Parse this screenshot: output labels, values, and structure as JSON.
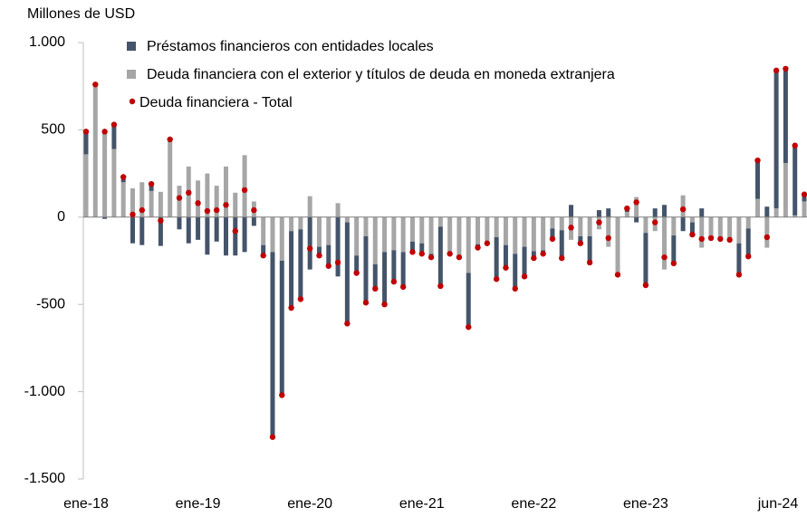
{
  "chart_data": {
    "type": "bar",
    "y_axis_label": "Millones de USD",
    "categories": [
      "ene-18",
      null,
      null,
      null,
      null,
      null,
      null,
      null,
      null,
      null,
      null,
      null,
      "ene-19",
      null,
      null,
      null,
      null,
      null,
      null,
      null,
      null,
      null,
      null,
      null,
      "ene-20",
      null,
      null,
      null,
      null,
      null,
      null,
      null,
      null,
      null,
      null,
      null,
      "ene-21",
      null,
      null,
      null,
      null,
      null,
      null,
      null,
      null,
      null,
      null,
      null,
      "ene-22",
      null,
      null,
      null,
      null,
      null,
      null,
      null,
      null,
      null,
      null,
      null,
      "ene-23",
      null,
      null,
      null,
      null,
      null,
      null,
      null,
      null,
      null,
      null,
      null,
      null,
      null,
      null,
      null,
      null,
      "jun-24"
    ],
    "series": [
      {
        "name": "Préstamos financieros con entidades locales",
        "color": "#44546a",
        "mark": "bar",
        "values": [
          130,
          0,
          -10,
          140,
          30,
          -150,
          -160,
          40,
          -165,
          0,
          -70,
          -150,
          -130,
          -215,
          -140,
          -220,
          -220,
          -200,
          -50,
          -60,
          -1060,
          -770,
          -440,
          -400,
          -300,
          -50,
          -120,
          -340,
          -580,
          -100,
          -380,
          -140,
          -300,
          -180,
          -200,
          -60,
          -60,
          -20,
          -340,
          0,
          0,
          -310,
          -20,
          0,
          -240,
          -130,
          -200,
          -170,
          -40,
          -20,
          -60,
          -160,
          70,
          -40,
          -150,
          40,
          50,
          0,
          20,
          -30,
          -300,
          50,
          70,
          -160,
          -80,
          -70,
          50,
          0,
          0,
          0,
          -180,
          -160,
          220,
          60,
          790,
          540,
          400,
          40
        ]
      },
      {
        "name": "Deuda financiera con el exterior y títulos de deuda en moneda extranjera",
        "color": "#a6a6a6",
        "mark": "bar",
        "values": [
          360,
          760,
          500,
          390,
          200,
          165,
          200,
          150,
          145,
          445,
          180,
          290,
          210,
          250,
          180,
          290,
          140,
          355,
          90,
          -160,
          -200,
          -250,
          -80,
          -70,
          120,
          -170,
          -160,
          80,
          -30,
          -220,
          -110,
          -270,
          -200,
          -190,
          -200,
          -140,
          -150,
          -210,
          -55,
          -210,
          -230,
          -320,
          -155,
          -150,
          -115,
          -160,
          -210,
          -170,
          -195,
          -190,
          -65,
          -75,
          -130,
          -110,
          -110,
          -70,
          -170,
          -330,
          30,
          115,
          -90,
          -80,
          -300,
          -105,
          125,
          -30,
          -175,
          -120,
          -125,
          -130,
          -150,
          -65,
          105,
          -175,
          50,
          310,
          10,
          90
        ]
      },
      {
        "name": "Deuda financiera - Total",
        "color": "#c00000",
        "mark": "dot",
        "values": [
          490,
          760,
          490,
          530,
          230,
          15,
          40,
          190,
          -20,
          445,
          110,
          140,
          80,
          35,
          40,
          70,
          -80,
          155,
          40,
          -220,
          -1260,
          -1020,
          -520,
          -470,
          -180,
          -220,
          -280,
          -260,
          -610,
          -320,
          -490,
          -410,
          -500,
          -370,
          -400,
          -200,
          -210,
          -230,
          -395,
          -210,
          -230,
          -630,
          -175,
          -150,
          -355,
          -290,
          -410,
          -340,
          -235,
          -210,
          -125,
          -235,
          -60,
          -150,
          -260,
          -30,
          -120,
          -330,
          50,
          85,
          -390,
          -30,
          -230,
          -265,
          45,
          -100,
          -125,
          -120,
          -125,
          -130,
          -330,
          -225,
          325,
          -115,
          840,
          850,
          410,
          130
        ]
      }
    ],
    "ylim": [
      -1500,
      1000
    ],
    "yticks": [
      {
        "value": 1000,
        "label": "1.000"
      },
      500,
      0,
      -500,
      {
        "value": -1000,
        "label": "-1.000"
      },
      {
        "value": -1500,
        "label": "-1.500"
      }
    ],
    "grid": false,
    "legend": "top"
  }
}
